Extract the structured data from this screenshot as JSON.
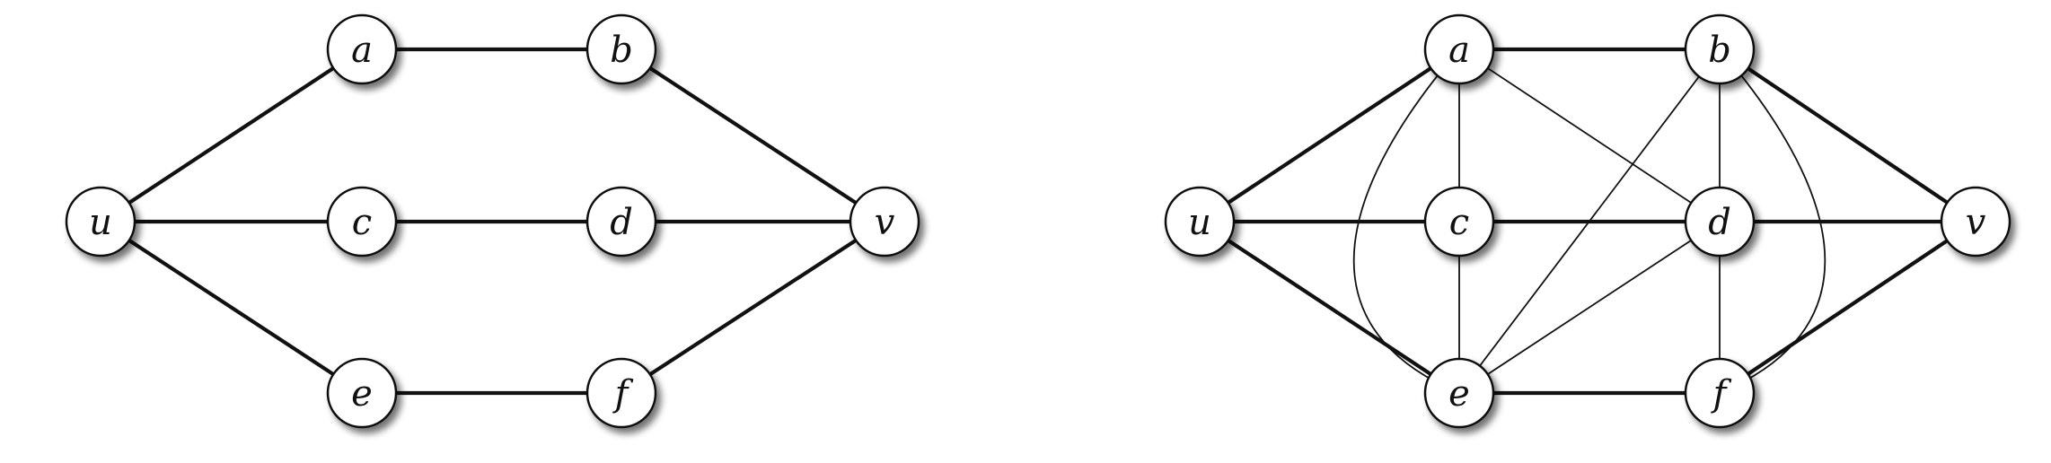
{
  "diagrams": [
    {
      "id": "graph-left",
      "nodes": [
        {
          "id": "a",
          "label": "a"
        },
        {
          "id": "b",
          "label": "b"
        },
        {
          "id": "u",
          "label": "u"
        },
        {
          "id": "c",
          "label": "c"
        },
        {
          "id": "d",
          "label": "d"
        },
        {
          "id": "v",
          "label": "v"
        },
        {
          "id": "e",
          "label": "e"
        },
        {
          "id": "f",
          "label": "f"
        }
      ],
      "edges": [
        {
          "from": "u",
          "to": "a",
          "style": "thick"
        },
        {
          "from": "a",
          "to": "b",
          "style": "thick"
        },
        {
          "from": "b",
          "to": "v",
          "style": "thick"
        },
        {
          "from": "u",
          "to": "c",
          "style": "thick"
        },
        {
          "from": "c",
          "to": "d",
          "style": "thick"
        },
        {
          "from": "d",
          "to": "v",
          "style": "thick"
        },
        {
          "from": "u",
          "to": "e",
          "style": "thick"
        },
        {
          "from": "e",
          "to": "f",
          "style": "thick"
        },
        {
          "from": "f",
          "to": "v",
          "style": "thick"
        }
      ]
    },
    {
      "id": "graph-right",
      "nodes": [
        {
          "id": "a",
          "label": "a"
        },
        {
          "id": "b",
          "label": "b"
        },
        {
          "id": "u",
          "label": "u"
        },
        {
          "id": "c",
          "label": "c"
        },
        {
          "id": "d",
          "label": "d"
        },
        {
          "id": "v",
          "label": "v"
        },
        {
          "id": "e",
          "label": "e"
        },
        {
          "id": "f",
          "label": "f"
        }
      ],
      "edges": [
        {
          "from": "u",
          "to": "a",
          "style": "thick"
        },
        {
          "from": "a",
          "to": "b",
          "style": "thick"
        },
        {
          "from": "b",
          "to": "v",
          "style": "thick"
        },
        {
          "from": "u",
          "to": "c",
          "style": "thick"
        },
        {
          "from": "c",
          "to": "d",
          "style": "thick"
        },
        {
          "from": "d",
          "to": "v",
          "style": "thick"
        },
        {
          "from": "u",
          "to": "e",
          "style": "thick"
        },
        {
          "from": "e",
          "to": "f",
          "style": "thick"
        },
        {
          "from": "f",
          "to": "v",
          "style": "thick"
        },
        {
          "from": "a",
          "to": "c",
          "style": "thin"
        },
        {
          "from": "a",
          "to": "d",
          "style": "thin"
        },
        {
          "from": "a",
          "to": "e",
          "style": "thin",
          "curved": true
        },
        {
          "from": "b",
          "to": "d",
          "style": "thin"
        },
        {
          "from": "b",
          "to": "e",
          "style": "thin"
        },
        {
          "from": "b",
          "to": "f",
          "style": "thin",
          "curved": true
        },
        {
          "from": "c",
          "to": "e",
          "style": "thin"
        },
        {
          "from": "d",
          "to": "e",
          "style": "thin"
        },
        {
          "from": "d",
          "to": "f",
          "style": "thin"
        }
      ]
    }
  ],
  "colors": {
    "edge": "#111111",
    "node_stroke": "#111111",
    "node_fill": "#ffffff",
    "node_shadow": "#555555",
    "label": "#111111"
  }
}
